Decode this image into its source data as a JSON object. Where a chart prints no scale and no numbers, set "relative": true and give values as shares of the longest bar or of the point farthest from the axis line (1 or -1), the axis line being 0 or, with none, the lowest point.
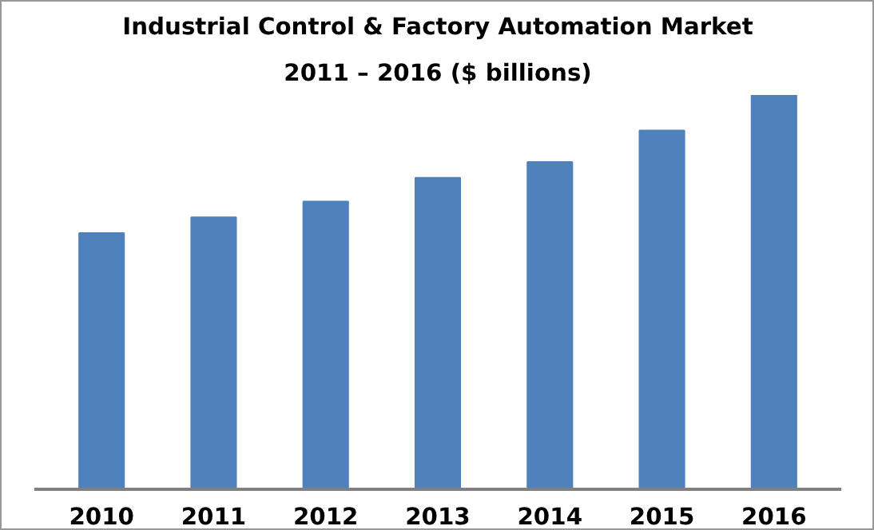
{
  "chart_data": {
    "type": "bar",
    "title": "Industrial Control & Factory Automation Market",
    "subtitle": "2011 – 2016 ($ billions)",
    "categories": [
      "2010",
      "2011",
      "2012",
      "2013",
      "2014",
      "2015",
      "2016"
    ],
    "values": [
      0.65,
      0.69,
      0.73,
      0.79,
      0.83,
      0.91,
      1
    ],
    "color": "#4f81bd",
    "relative": true,
    "grid": false
  }
}
